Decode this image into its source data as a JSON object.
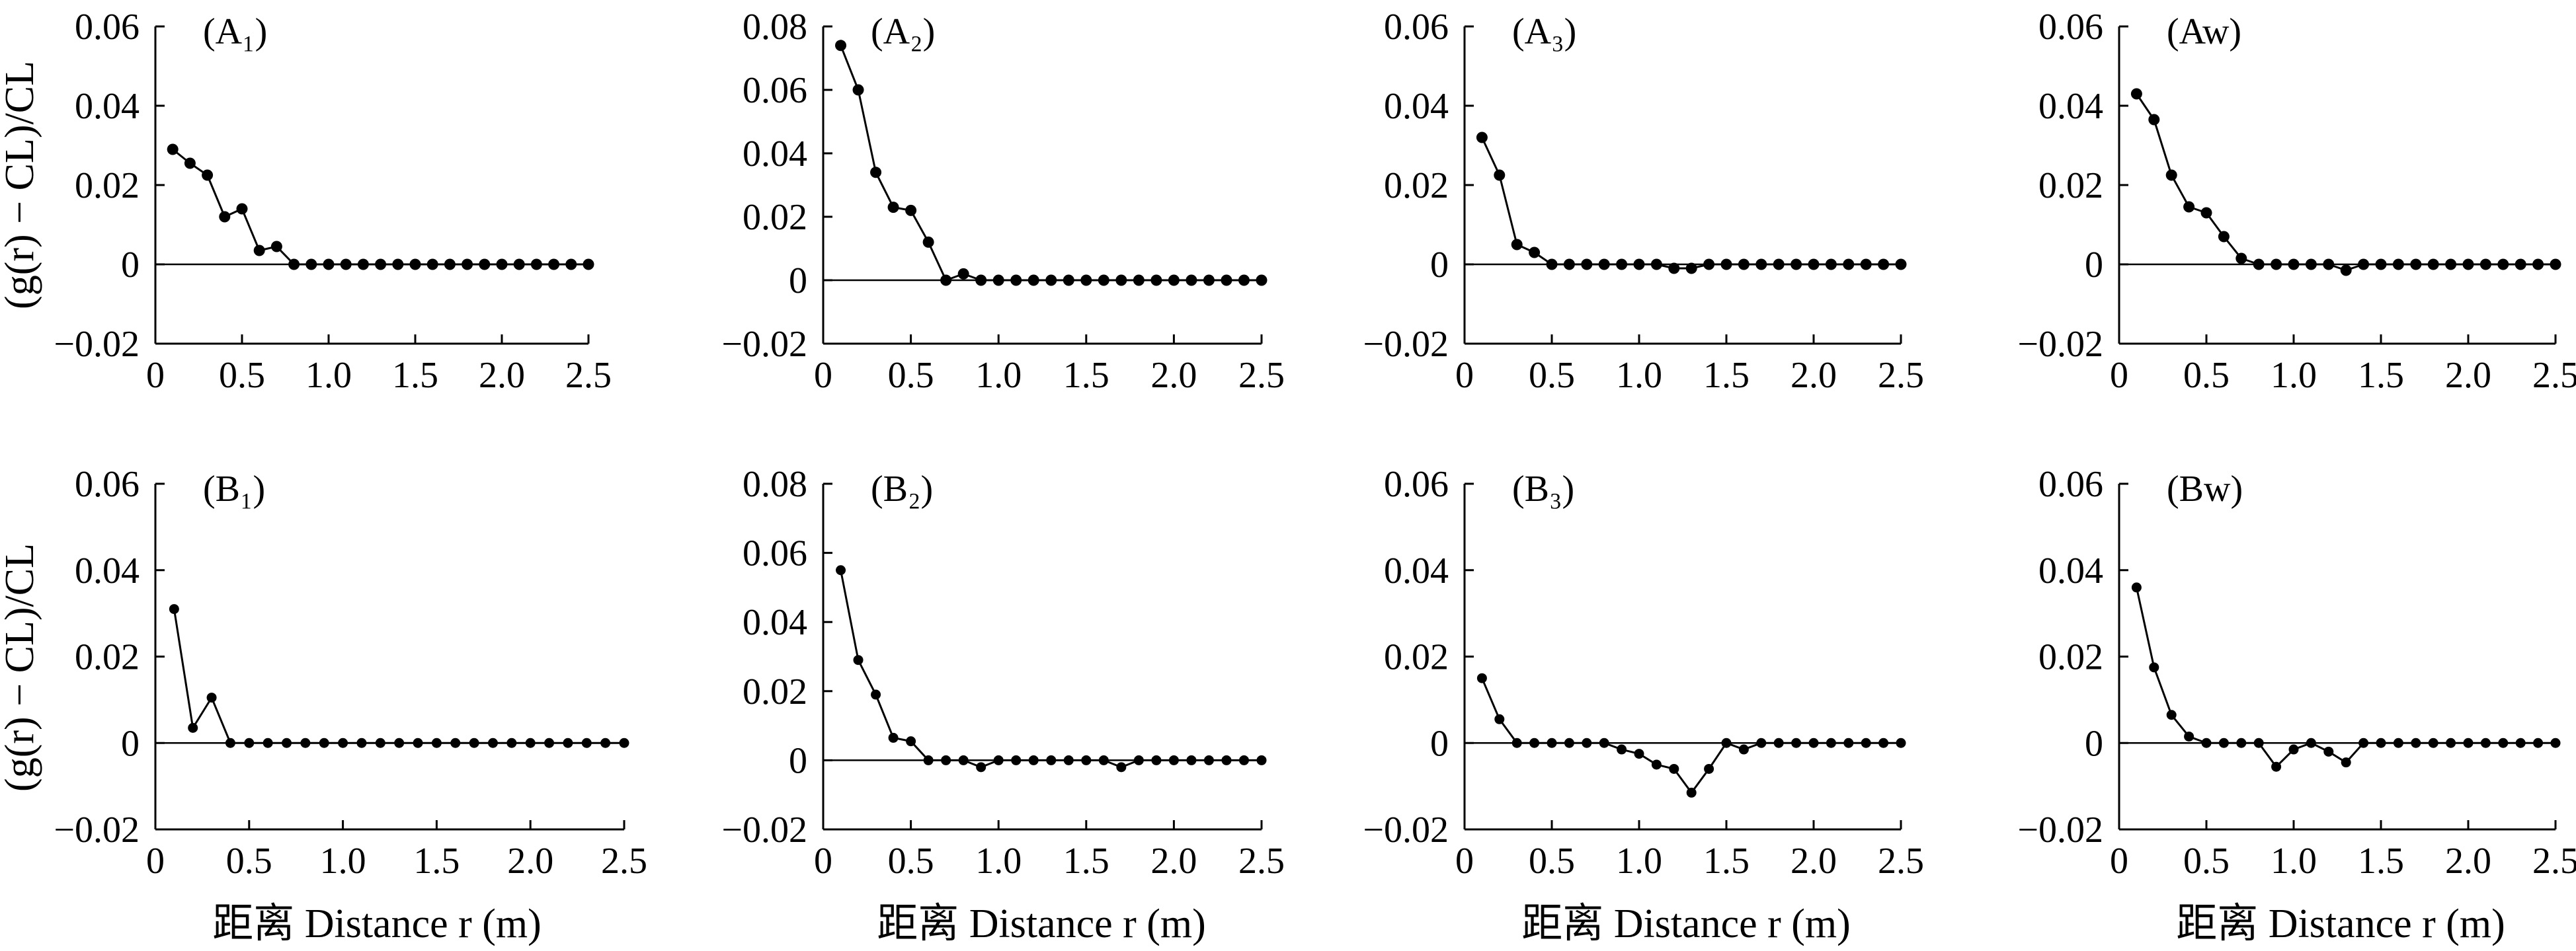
{
  "figure": {
    "ylabel_top": "(g(r) − CL)/CL",
    "ylabel_bottom": "(g(r) − CL)/CL",
    "xlabel": "距离 Distance r (m)"
  },
  "chart_data": [
    {
      "type": "line",
      "panel": "A1",
      "label": "(A₁)",
      "xlim": [
        0,
        2.5
      ],
      "ylim": [
        -0.02,
        0.06
      ],
      "xticks": [
        "0",
        "0.5",
        "1.0",
        "1.5",
        "2.0",
        "2.5"
      ],
      "yticks": [
        "−0.02",
        "0",
        "0.02",
        "0.04",
        "0.06"
      ],
      "x": [
        0.1,
        0.2,
        0.3,
        0.4,
        0.5,
        0.6,
        0.7,
        0.8,
        0.9,
        1.0,
        1.1,
        1.2,
        1.3,
        1.4,
        1.5,
        1.6,
        1.7,
        1.8,
        1.9,
        2.0,
        2.1,
        2.2,
        2.3,
        2.4,
        2.5
      ],
      "values": [
        0.029,
        0.0255,
        0.0225,
        0.012,
        0.014,
        0.0035,
        0.0045,
        0,
        0,
        0,
        0,
        0,
        0,
        0,
        0,
        0,
        0,
        0,
        0,
        0,
        0,
        0,
        0,
        0,
        0
      ]
    },
    {
      "type": "line",
      "panel": "A2",
      "label": "(A₂)",
      "xlim": [
        0,
        2.5
      ],
      "ylim": [
        -0.02,
        0.08
      ],
      "xticks": [
        "0",
        "0.5",
        "1.0",
        "1.5",
        "2.0",
        "2.5"
      ],
      "yticks": [
        "−0.02",
        "0",
        "0.02",
        "0.04",
        "0.06",
        "0.08"
      ],
      "x": [
        0.1,
        0.2,
        0.3,
        0.4,
        0.5,
        0.6,
        0.7,
        0.8,
        0.9,
        1.0,
        1.1,
        1.2,
        1.3,
        1.4,
        1.5,
        1.6,
        1.7,
        1.8,
        1.9,
        2.0,
        2.1,
        2.2,
        2.3,
        2.4,
        2.5
      ],
      "values": [
        0.074,
        0.06,
        0.034,
        0.023,
        0.022,
        0.012,
        0,
        0.002,
        0,
        0,
        0,
        0,
        0,
        0,
        0,
        0,
        0,
        0,
        0,
        0,
        0,
        0,
        0,
        0,
        0
      ]
    },
    {
      "type": "line",
      "panel": "A3",
      "label": "(A₃)",
      "xlim": [
        0,
        2.5
      ],
      "ylim": [
        -0.02,
        0.06
      ],
      "xticks": [
        "0",
        "0.5",
        "1.0",
        "1.5",
        "2.0",
        "2.5"
      ],
      "yticks": [
        "−0.02",
        "0",
        "0.02",
        "0.04",
        "0.06"
      ],
      "x": [
        0.1,
        0.2,
        0.3,
        0.4,
        0.5,
        0.6,
        0.7,
        0.8,
        0.9,
        1.0,
        1.1,
        1.2,
        1.3,
        1.4,
        1.5,
        1.6,
        1.7,
        1.8,
        1.9,
        2.0,
        2.1,
        2.2,
        2.3,
        2.4,
        2.5
      ],
      "values": [
        0.032,
        0.0225,
        0.005,
        0.003,
        0,
        0,
        0,
        0,
        0,
        0,
        0,
        -0.001,
        -0.001,
        0,
        0,
        0,
        0,
        0,
        0,
        0,
        0,
        0,
        0,
        0,
        0
      ]
    },
    {
      "type": "line",
      "panel": "Aw",
      "label": "(Aw)",
      "xlim": [
        0,
        2.5
      ],
      "ylim": [
        -0.02,
        0.06
      ],
      "xticks": [
        "0",
        "0.5",
        "1.0",
        "1.5",
        "2.0",
        "2.5"
      ],
      "yticks": [
        "−0.02",
        "0",
        "0.02",
        "0.04",
        "0.06"
      ],
      "x": [
        0.1,
        0.2,
        0.3,
        0.4,
        0.5,
        0.6,
        0.7,
        0.8,
        0.9,
        1.0,
        1.1,
        1.2,
        1.3,
        1.4,
        1.5,
        1.6,
        1.7,
        1.8,
        1.9,
        2.0,
        2.1,
        2.2,
        2.3,
        2.4,
        2.5
      ],
      "values": [
        0.043,
        0.0365,
        0.0225,
        0.0145,
        0.013,
        0.007,
        0.0015,
        0,
        0,
        0,
        0,
        0,
        -0.0015,
        0,
        0,
        0,
        0,
        0,
        0,
        0,
        0,
        0,
        0,
        0,
        0
      ]
    },
    {
      "type": "line",
      "panel": "B1",
      "label": "(B₁)",
      "xlim": [
        0,
        2.5
      ],
      "ylim": [
        -0.02,
        0.06
      ],
      "xticks": [
        "0",
        "0.5",
        "1.0",
        "1.5",
        "2.0",
        "2.5"
      ],
      "yticks": [
        "−0.02",
        "0",
        "0.02",
        "0.04",
        "0.06"
      ],
      "x": [
        0.1,
        0.2,
        0.3,
        0.4,
        0.5,
        0.6,
        0.7,
        0.8,
        0.9,
        1.0,
        1.1,
        1.2,
        1.3,
        1.4,
        1.5,
        1.6,
        1.7,
        1.8,
        1.9,
        2.0,
        2.1,
        2.2,
        2.3,
        2.4,
        2.5
      ],
      "values": [
        0.031,
        0.0035,
        0.0105,
        0,
        0,
        0,
        0,
        0,
        0,
        0,
        0,
        0,
        0,
        0,
        0,
        0,
        0,
        0,
        0,
        0,
        0,
        0,
        0,
        0,
        0
      ]
    },
    {
      "type": "line",
      "panel": "B2",
      "label": "(B₂)",
      "xlim": [
        0,
        2.5
      ],
      "ylim": [
        -0.02,
        0.08
      ],
      "xticks": [
        "0",
        "0.5",
        "1.0",
        "1.5",
        "2.0",
        "2.5"
      ],
      "yticks": [
        "−0.02",
        "0",
        "0.02",
        "0.04",
        "0.06",
        "0.08"
      ],
      "x": [
        0.1,
        0.2,
        0.3,
        0.4,
        0.5,
        0.6,
        0.7,
        0.8,
        0.9,
        1.0,
        1.1,
        1.2,
        1.3,
        1.4,
        1.5,
        1.6,
        1.7,
        1.8,
        1.9,
        2.0,
        2.1,
        2.2,
        2.3,
        2.4,
        2.5
      ],
      "values": [
        0.055,
        0.029,
        0.019,
        0.0065,
        0.0055,
        0,
        0,
        0,
        -0.002,
        0,
        0,
        0,
        0,
        0,
        0,
        0,
        -0.002,
        0,
        0,
        0,
        0,
        0,
        0,
        0,
        0
      ]
    },
    {
      "type": "line",
      "panel": "B3",
      "label": "(B₃)",
      "xlim": [
        0,
        2.5
      ],
      "ylim": [
        -0.02,
        0.06
      ],
      "xticks": [
        "0",
        "0.5",
        "1.0",
        "1.5",
        "2.0",
        "2.5"
      ],
      "yticks": [
        "−0.02",
        "0",
        "0.02",
        "0.04",
        "0.06"
      ],
      "x": [
        0.1,
        0.2,
        0.3,
        0.4,
        0.5,
        0.6,
        0.7,
        0.8,
        0.9,
        1.0,
        1.1,
        1.2,
        1.3,
        1.4,
        1.5,
        1.6,
        1.7,
        1.8,
        1.9,
        2.0,
        2.1,
        2.2,
        2.3,
        2.4,
        2.5
      ],
      "values": [
        0.015,
        0.0055,
        0,
        0,
        0,
        0,
        0,
        0,
        -0.0015,
        -0.0025,
        -0.005,
        -0.006,
        -0.0115,
        -0.006,
        0,
        -0.0015,
        0,
        0,
        0,
        0,
        0,
        0,
        0,
        0,
        0
      ]
    },
    {
      "type": "line",
      "panel": "Bw",
      "label": "(Bw)",
      "xlim": [
        0,
        2.5
      ],
      "ylim": [
        -0.02,
        0.06
      ],
      "xticks": [
        "0",
        "0.5",
        "1.0",
        "1.5",
        "2.0",
        "2.5"
      ],
      "yticks": [
        "−0.02",
        "0",
        "0.02",
        "0.04",
        "0.06"
      ],
      "x": [
        0.1,
        0.2,
        0.3,
        0.4,
        0.5,
        0.6,
        0.7,
        0.8,
        0.9,
        1.0,
        1.1,
        1.2,
        1.3,
        1.4,
        1.5,
        1.6,
        1.7,
        1.8,
        1.9,
        2.0,
        2.1,
        2.2,
        2.3,
        2.4,
        2.5
      ],
      "values": [
        0.036,
        0.0175,
        0.0065,
        0.0015,
        0,
        0,
        0,
        0,
        -0.0055,
        -0.0015,
        0,
        -0.002,
        -0.0045,
        0,
        0,
        0,
        0,
        0,
        0,
        0,
        0,
        0,
        0,
        0,
        0
      ]
    }
  ]
}
